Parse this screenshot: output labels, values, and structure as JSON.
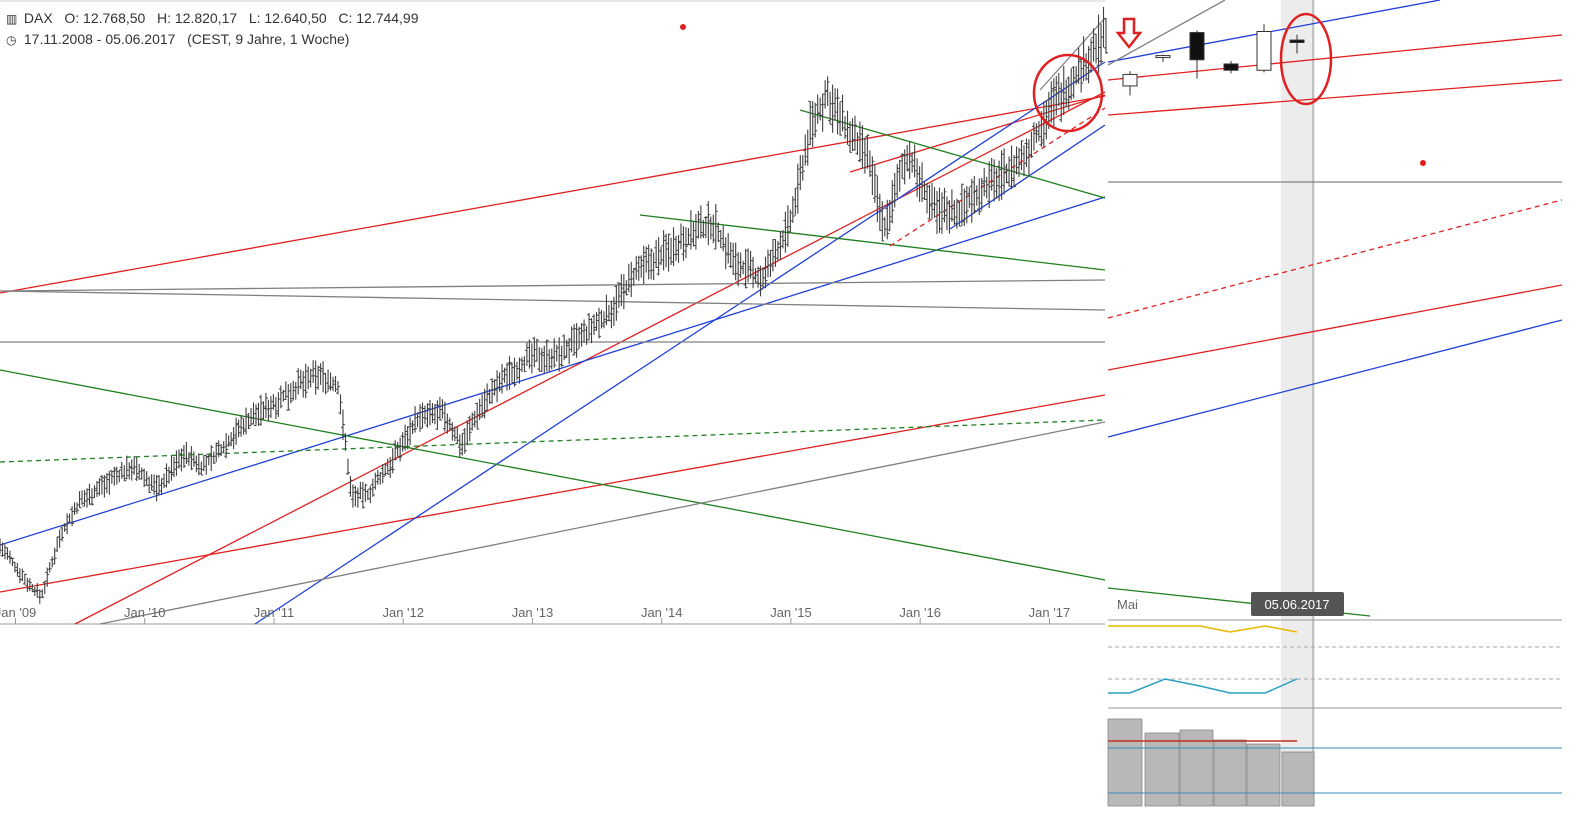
{
  "header": {
    "symbol": "DAX",
    "ohlc": "O: 12.768,50   H: 12.820,17   L: 12.640,50   C: 12.744,99",
    "period": "17.11.2008 - 05.06.2017",
    "details": "(CEST, 9 Jahre, 1 Woche)",
    "icons": [
      "candles-icon",
      "clock-icon"
    ]
  },
  "colors": {
    "price": "#404040",
    "support_red": "#e02020",
    "channel_blue": "#2040d8",
    "trend_green": "#208020",
    "level_gray": "#808080",
    "highlight_circle": "#e02020",
    "indicator_yellow": "#e8b800",
    "indicator_teal": "#2aa0c0",
    "volume_gray": "#b8b8b8",
    "date_badge_bg": "#555555"
  },
  "zoom": {
    "month_label": "Mai",
    "crosshair_date": "05.06.2017"
  },
  "chart_data": {
    "type": "bar",
    "title": "",
    "xlabel": "",
    "ylabel": "",
    "x_ticks": [
      "Jan '09",
      "Jan '10",
      "Jan '11",
      "Jan '12",
      "Jan '13",
      "Jan '14",
      "Jan '15",
      "Jan '16",
      "Jan '17"
    ],
    "x_range": [
      2008.88,
      2017.43
    ],
    "ylim": [
      3500,
      13000
    ],
    "grid": false,
    "series": [
      {
        "values_time": [
          2008.88,
          2009.1,
          2009.2,
          2009.35,
          2009.5,
          2009.7,
          2009.9,
          2010.1,
          2010.3,
          2010.45,
          2010.6,
          2010.8,
          2011.0,
          2011.2,
          2011.35,
          2011.5,
          2011.6,
          2011.72,
          2011.9,
          2012.1,
          2012.3,
          2012.45,
          2012.6,
          2012.8,
          2013.0,
          2013.2,
          2013.45,
          2013.6,
          2013.8,
          2014.0,
          2014.2,
          2014.4,
          2014.55,
          2014.78,
          2015.0,
          2015.15,
          2015.28,
          2015.45,
          2015.6,
          2015.72,
          2015.9,
          2016.1,
          2016.3,
          2016.45,
          2016.6,
          2016.8,
          2017.0,
          2017.2,
          2017.43
        ],
        "values": [
          4700,
          4100,
          3900,
          4900,
          5400,
          5700,
          5950,
          5600,
          6150,
          5950,
          6250,
          6700,
          6950,
          7250,
          7400,
          7200,
          5500,
          5500,
          6000,
          6700,
          6800,
          6300,
          6900,
          7400,
          7700,
          7700,
          8100,
          8400,
          9000,
          9300,
          9600,
          9800,
          9200,
          8900,
          9800,
          11300,
          11800,
          11200,
          10800,
          9700,
          10900,
          10000,
          10000,
          10300,
          10500,
          10800,
          11600,
          12100,
          12745
        ]
      }
    ],
    "annotations": [
      "support and resistance trend lines",
      "highlight circles at latest candles"
    ]
  },
  "zoom_candles": [
    {
      "o": 12330,
      "h": 12470,
      "l": 12240,
      "c": 12440
    },
    {
      "o": 12610,
      "h": 12630,
      "l": 12560,
      "c": 12620
    },
    {
      "o": 12840,
      "h": 12860,
      "l": 12400,
      "c": 12580
    },
    {
      "o": 12540,
      "h": 12570,
      "l": 12450,
      "c": 12480
    },
    {
      "o": 12480,
      "h": 12920,
      "l": 12460,
      "c": 12850
    },
    {
      "o": 12768,
      "h": 12820,
      "l": 12640,
      "c": 12745
    }
  ],
  "zoom_range": [
    12100,
    12960
  ]
}
